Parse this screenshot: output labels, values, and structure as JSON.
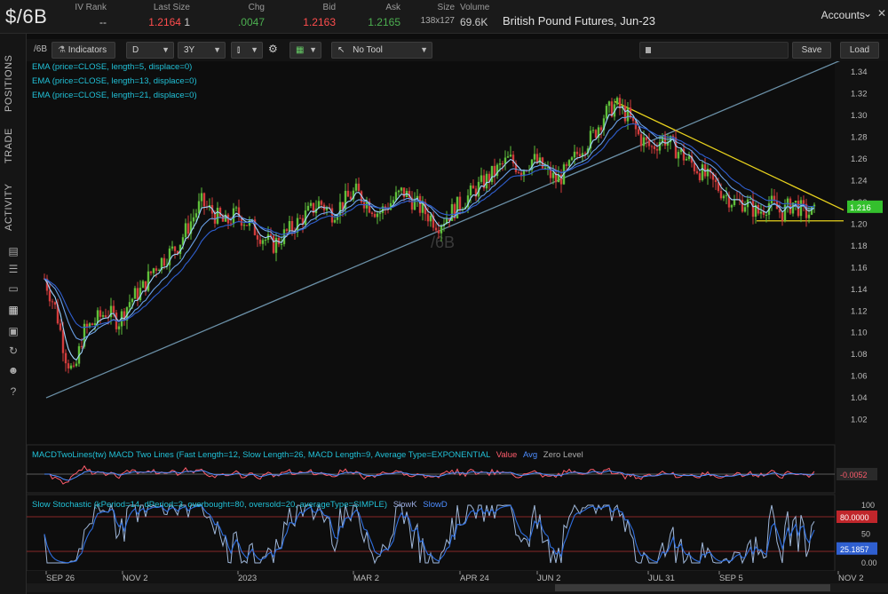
{
  "quote": {
    "symbol": "$/6B",
    "iv_rank_label": "IV Rank",
    "iv_rank_value": "--",
    "last_size_label": "Last Size",
    "last_value": "1.2164",
    "last_size_value": "1",
    "chg_label": "Chg",
    "chg_value": ".0047",
    "bid_label": "Bid",
    "bid_value": "1.2163",
    "ask_label": "Ask",
    "ask_value": "1.2165",
    "size_label": "Size",
    "size_value": "138x127",
    "volume_label": "Volume",
    "volume_value": "69.6K",
    "description": "British Pound Futures, Jun-23",
    "accounts_label": "Accounts",
    "colors": {
      "last": "#ff4d4d",
      "chg": "#4caf50",
      "bid": "#ff4d4d",
      "ask": "#4caf50"
    }
  },
  "left_tabs": [
    "POSITIONS",
    "TRADE",
    "ACTIVITY"
  ],
  "left_icons": [
    "clipboard-icon",
    "list-icon",
    "monitor-icon",
    "chart-icon",
    "grid-icon",
    "refresh-icon",
    "people-icon",
    "help-icon"
  ],
  "toolbar": {
    "symbol": "/6B",
    "indicators_label": "Indicators",
    "aggregation": "D",
    "period": "3Y",
    "drawing_tool": "No Tool",
    "save_label": "Save",
    "load_label": "Load"
  },
  "studies": {
    "ema5": "EMA (price=CLOSE, length=5, displace=0)",
    "ema13": "EMA (price=CLOSE, length=13, displace=0)",
    "ema21": "EMA (price=CLOSE, length=21, displace=0)",
    "macd": "MACDTwoLines(tw) MACD Two Lines (Fast Length=12, Slow Length=26, MACD Length=9, Average Type=EXPONENTIAL",
    "macd_value": "Value",
    "macd_avg": "Avg",
    "macd_zero": "Zero Level",
    "stoch": "Slow Stochastic (kPeriod=14, dPeriod=3, overbought=80, oversold=20, averageType=SIMPLE)",
    "stoch_k": "SlowK",
    "stoch_d": "SlowD"
  },
  "chart_data": {
    "type": "candlestick",
    "watermark": "/6B",
    "price_axis": [
      "1.34",
      "1.32",
      "1.30",
      "1.28",
      "1.26",
      "1.24",
      "1.22",
      "1.20",
      "1.18",
      "1.16",
      "1.14",
      "1.12",
      "1.10",
      "1.08",
      "1.06",
      "1.04",
      "1.02"
    ],
    "ylim": [
      1.0,
      1.35
    ],
    "last_price_tag": "1.216",
    "date_axis": [
      "SEP 26",
      "NOV 2",
      "2023",
      "MAR 2",
      "APR 24",
      "JUN 2",
      "JUL 31",
      "SEP 5",
      "NOV 2"
    ],
    "close_path": [
      [
        0,
        1.15
      ],
      [
        8,
        1.12
      ],
      [
        14,
        1.08
      ],
      [
        20,
        1.06
      ],
      [
        26,
        1.1
      ],
      [
        34,
        1.11
      ],
      [
        42,
        1.12
      ],
      [
        50,
        1.11
      ],
      [
        58,
        1.13
      ],
      [
        66,
        1.14
      ],
      [
        74,
        1.16
      ],
      [
        82,
        1.17
      ],
      [
        90,
        1.18
      ],
      [
        98,
        1.2
      ],
      [
        106,
        1.22
      ],
      [
        114,
        1.21
      ],
      [
        122,
        1.2
      ],
      [
        130,
        1.21
      ],
      [
        138,
        1.2
      ],
      [
        146,
        1.19
      ],
      [
        154,
        1.18
      ],
      [
        162,
        1.19
      ],
      [
        170,
        1.2
      ],
      [
        178,
        1.21
      ],
      [
        186,
        1.22
      ],
      [
        194,
        1.21
      ],
      [
        202,
        1.22
      ],
      [
        210,
        1.23
      ],
      [
        218,
        1.22
      ],
      [
        226,
        1.21
      ],
      [
        234,
        1.22
      ],
      [
        242,
        1.23
      ],
      [
        250,
        1.22
      ],
      [
        258,
        1.21
      ],
      [
        266,
        1.2
      ],
      [
        274,
        1.21
      ],
      [
        282,
        1.22
      ],
      [
        290,
        1.23
      ],
      [
        298,
        1.24
      ],
      [
        306,
        1.25
      ],
      [
        314,
        1.26
      ],
      [
        322,
        1.25
      ],
      [
        330,
        1.26
      ],
      [
        338,
        1.25
      ],
      [
        346,
        1.24
      ],
      [
        354,
        1.25
      ],
      [
        362,
        1.27
      ],
      [
        370,
        1.28
      ],
      [
        378,
        1.3
      ],
      [
        386,
        1.31
      ],
      [
        394,
        1.3
      ],
      [
        402,
        1.28
      ],
      [
        410,
        1.27
      ],
      [
        418,
        1.28
      ],
      [
        426,
        1.27
      ],
      [
        434,
        1.26
      ],
      [
        442,
        1.25
      ],
      [
        450,
        1.24
      ],
      [
        458,
        1.23
      ],
      [
        466,
        1.22
      ],
      [
        474,
        1.22
      ],
      [
        482,
        1.21
      ],
      [
        490,
        1.22
      ],
      [
        498,
        1.21
      ],
      [
        506,
        1.22
      ],
      [
        514,
        1.21
      ],
      [
        522,
        1.21
      ]
    ],
    "macd": {
      "value_tag": "-0.0052"
    },
    "stochastic": {
      "overbought": 80,
      "oversold": 20,
      "axis": [
        "100",
        "50",
        "0.00"
      ],
      "k_tag": "25.1857",
      "ob_tag": "80.0000"
    }
  }
}
